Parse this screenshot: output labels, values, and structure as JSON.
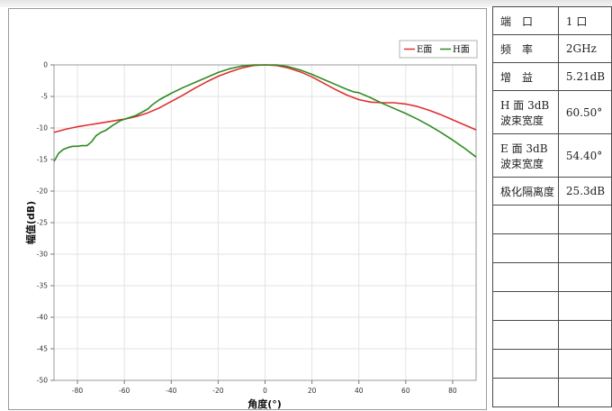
{
  "chart_data": {
    "type": "line",
    "xlabel": "角度(°)",
    "ylabel": "幅值(dB)",
    "xlim": [
      -90,
      90
    ],
    "ylim": [
      -50,
      0
    ],
    "xticks": [
      -80,
      -60,
      -40,
      -20,
      0,
      20,
      40,
      60,
      80
    ],
    "yticks": [
      0,
      -5,
      -10,
      -15,
      -20,
      -25,
      -30,
      -35,
      -40,
      -45,
      -50
    ],
    "grid": true,
    "legend_position": "top-right",
    "series": [
      {
        "name": "E面",
        "color": "#e03030",
        "x": [
          -90,
          -85,
          -80,
          -75,
          -70,
          -65,
          -60,
          -55,
          -50,
          -45,
          -40,
          -35,
          -30,
          -25,
          -20,
          -15,
          -10,
          -5,
          0,
          5,
          10,
          15,
          20,
          25,
          30,
          35,
          40,
          45,
          50,
          55,
          60,
          65,
          70,
          75,
          80,
          85,
          90
        ],
        "y": [
          -10.7,
          -10.2,
          -9.8,
          -9.5,
          -9.2,
          -8.9,
          -8.6,
          -8.2,
          -7.6,
          -6.8,
          -5.8,
          -4.8,
          -3.7,
          -2.7,
          -1.8,
          -1.1,
          -0.5,
          -0.1,
          0.0,
          -0.1,
          -0.5,
          -1.1,
          -1.9,
          -2.9,
          -3.9,
          -4.8,
          -5.5,
          -5.9,
          -6.0,
          -6.0,
          -6.2,
          -6.6,
          -7.2,
          -7.9,
          -8.7,
          -9.5,
          -10.3
        ]
      },
      {
        "name": "H面",
        "color": "#2e8b22",
        "x": [
          -90,
          -88,
          -86,
          -84,
          -82,
          -80,
          -78,
          -76,
          -74,
          -72,
          -70,
          -68,
          -65,
          -62,
          -60,
          -55,
          -50,
          -48,
          -45,
          -40,
          -35,
          -30,
          -25,
          -20,
          -15,
          -10,
          -5,
          0,
          5,
          10,
          15,
          20,
          25,
          30,
          35,
          38,
          40,
          45,
          50,
          55,
          60,
          65,
          70,
          75,
          80,
          85,
          90
        ],
        "y": [
          -15.3,
          -14.0,
          -13.4,
          -13.1,
          -12.9,
          -12.9,
          -12.8,
          -12.8,
          -12.2,
          -11.2,
          -10.7,
          -10.4,
          -9.6,
          -8.9,
          -8.6,
          -8.0,
          -7.0,
          -6.3,
          -5.5,
          -4.5,
          -3.6,
          -2.8,
          -2.0,
          -1.2,
          -0.6,
          -0.2,
          0.0,
          0.0,
          0.0,
          -0.3,
          -0.8,
          -1.5,
          -2.3,
          -3.1,
          -3.9,
          -4.3,
          -4.4,
          -5.2,
          -6.1,
          -6.9,
          -7.7,
          -8.6,
          -9.6,
          -10.7,
          -11.9,
          -13.2,
          -14.6
        ]
      }
    ]
  },
  "spec_table": {
    "rows": [
      {
        "label": "端　口",
        "value": "1 口"
      },
      {
        "label": "频　率",
        "value": "2GHz"
      },
      {
        "label": "增　益",
        "value": "5.21dB"
      },
      {
        "label": "H 面 3dB 波束宽度",
        "value": "60.50°"
      },
      {
        "label": "E 面 3dB 波束宽度",
        "value": "54.40°"
      },
      {
        "label": "极化隔离度",
        "value": "25.3dB"
      },
      {
        "label": "",
        "value": ""
      },
      {
        "label": "",
        "value": ""
      },
      {
        "label": "",
        "value": ""
      },
      {
        "label": "",
        "value": ""
      },
      {
        "label": "",
        "value": ""
      },
      {
        "label": "",
        "value": ""
      },
      {
        "label": "",
        "value": ""
      }
    ]
  }
}
